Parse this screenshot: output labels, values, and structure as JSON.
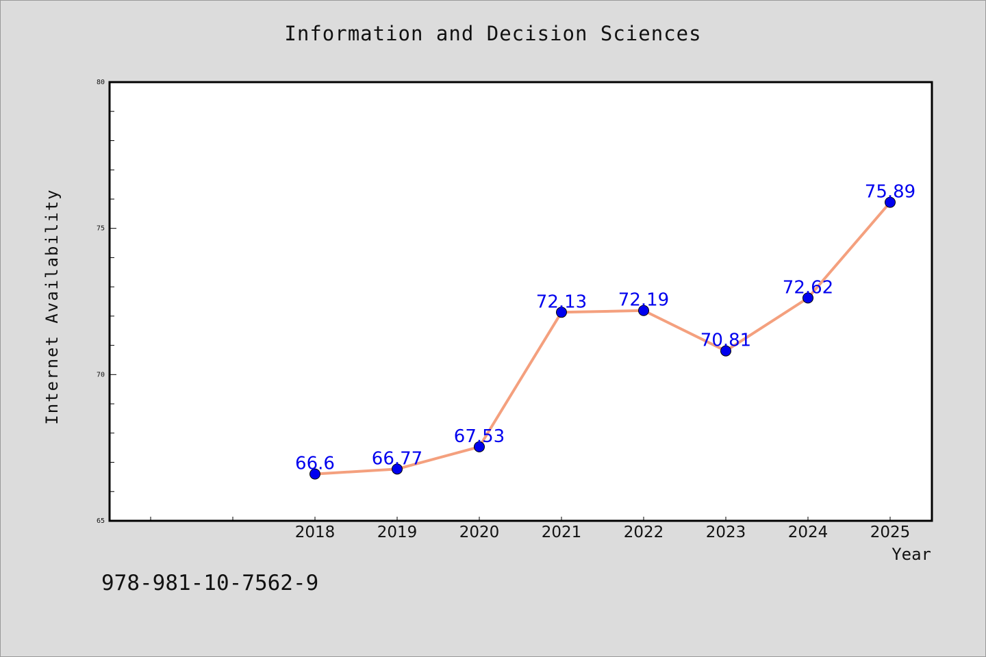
{
  "chart_data": {
    "type": "line",
    "title": "Information and Decision Sciences",
    "xlabel": "Year",
    "ylabel": "Internet Availability",
    "x": [
      "2018",
      "2019",
      "2020",
      "2021",
      "2022",
      "2023",
      "2024",
      "2025"
    ],
    "series": [
      {
        "values": [
          66.6,
          66.77,
          67.53,
          72.13,
          72.19,
          70.81,
          72.62,
          75.89
        ],
        "data_labels": [
          "66.6",
          "66.77",
          "67.53",
          "72.13",
          "72.19",
          "70.81",
          "72.62",
          "75.89"
        ],
        "line_color": "#f4a07e",
        "marker_color": "#0000ee"
      }
    ],
    "ylim": [
      65,
      80
    ],
    "yticks": [
      "65",
      "70",
      "75",
      "80"
    ],
    "x_category_slots": 10,
    "grid": false,
    "legend": "none"
  },
  "footer": {
    "isbn": "978-981-10-7562-9"
  },
  "colors": {
    "background": "#dcdcdc",
    "plot_background": "#ffffff",
    "axis": "#000000",
    "label_text": "#0000ee"
  }
}
